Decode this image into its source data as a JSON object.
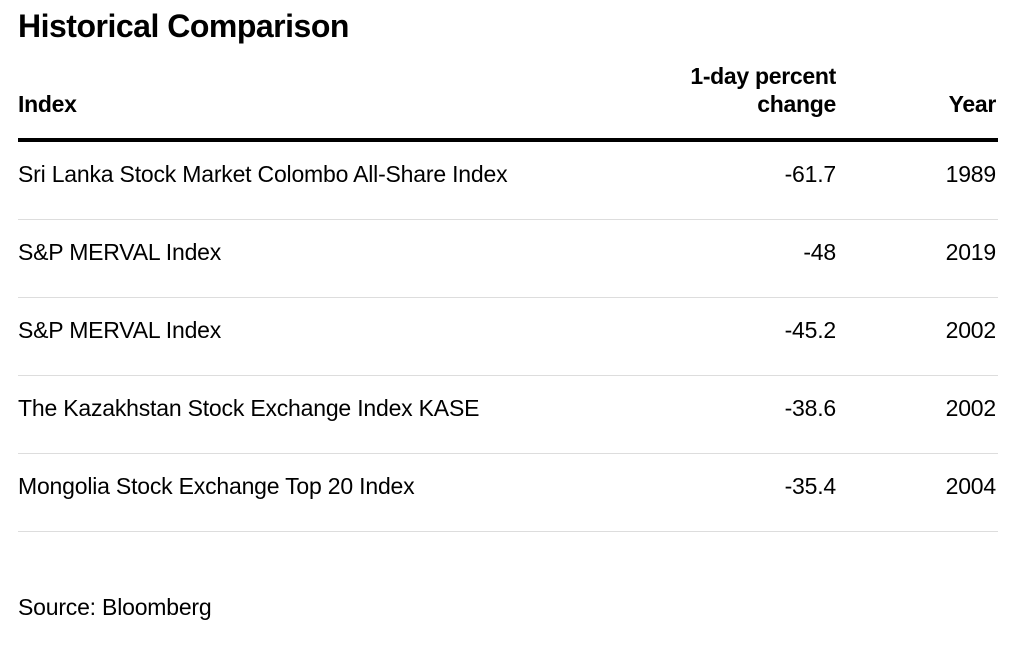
{
  "chart_data": {
    "type": "table",
    "title": "Historical Comparison",
    "columns": [
      "Index",
      "1-day percent change",
      "Year"
    ],
    "rows": [
      {
        "index": "Sri Lanka Stock Market Colombo All-Share Index",
        "change": "-61.7",
        "year": "1989"
      },
      {
        "index": "S&P MERVAL Index",
        "change": "-48",
        "year": "2019"
      },
      {
        "index": "S&P MERVAL Index",
        "change": "-45.2",
        "year": "2002"
      },
      {
        "index": "The Kazakhstan Stock Exchange Index KASE",
        "change": "-38.6",
        "year": "2002"
      },
      {
        "index": "Mongolia Stock Exchange Top 20 Index",
        "change": "-35.4",
        "year": "2004"
      }
    ],
    "source": "Source: Bloomberg"
  },
  "header": {
    "index_label": "Index",
    "change_label_line1": "1-day percent",
    "change_label_line2": "change",
    "year_label": "Year"
  }
}
